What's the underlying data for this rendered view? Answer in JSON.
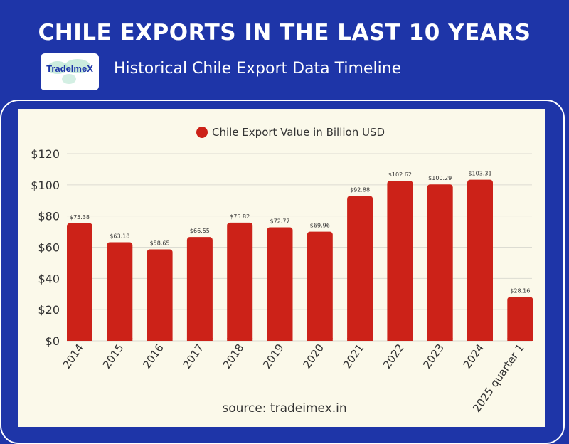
{
  "header": {
    "title": "CHILE EXPORTS IN THE LAST 10 YEARS",
    "subtitle": "Historical Chile Export Data Timeline",
    "logo_text": "TradeImeX"
  },
  "footer": {
    "source": "source: tradeimex.in"
  },
  "colors": {
    "background": "#1e35a8",
    "panel": "#fbf9ea",
    "bar": "#cc2218",
    "grid": "#dcdcd2"
  },
  "chart_data": {
    "type": "bar",
    "categories": [
      "2014",
      "2015",
      "2016",
      "2017",
      "2018",
      "2019",
      "2020",
      "2021",
      "2022",
      "2023",
      "2024",
      "2025 quarter 1"
    ],
    "series": [
      {
        "name": "Chile Export Value in Billion USD",
        "values": [
          75.38,
          63.18,
          58.65,
          66.55,
          75.82,
          72.77,
          69.96,
          92.88,
          102.62,
          100.29,
          103.31,
          28.16
        ],
        "labels": [
          "$75.38",
          "$63.18",
          "$58.65",
          "$66.55",
          "$75.82",
          "$72.77",
          "$69.96",
          "$92.88",
          "$102.62",
          "$100.29",
          "$103.31",
          "$28.16"
        ]
      }
    ],
    "ylim": [
      0,
      120
    ],
    "yticks": [
      0,
      20,
      40,
      60,
      80,
      100,
      120
    ],
    "ytick_labels": [
      "$0",
      "$20",
      "$40",
      "$60",
      "$80",
      "$100",
      "$120"
    ],
    "legend_position": "top-center",
    "grid": true
  }
}
